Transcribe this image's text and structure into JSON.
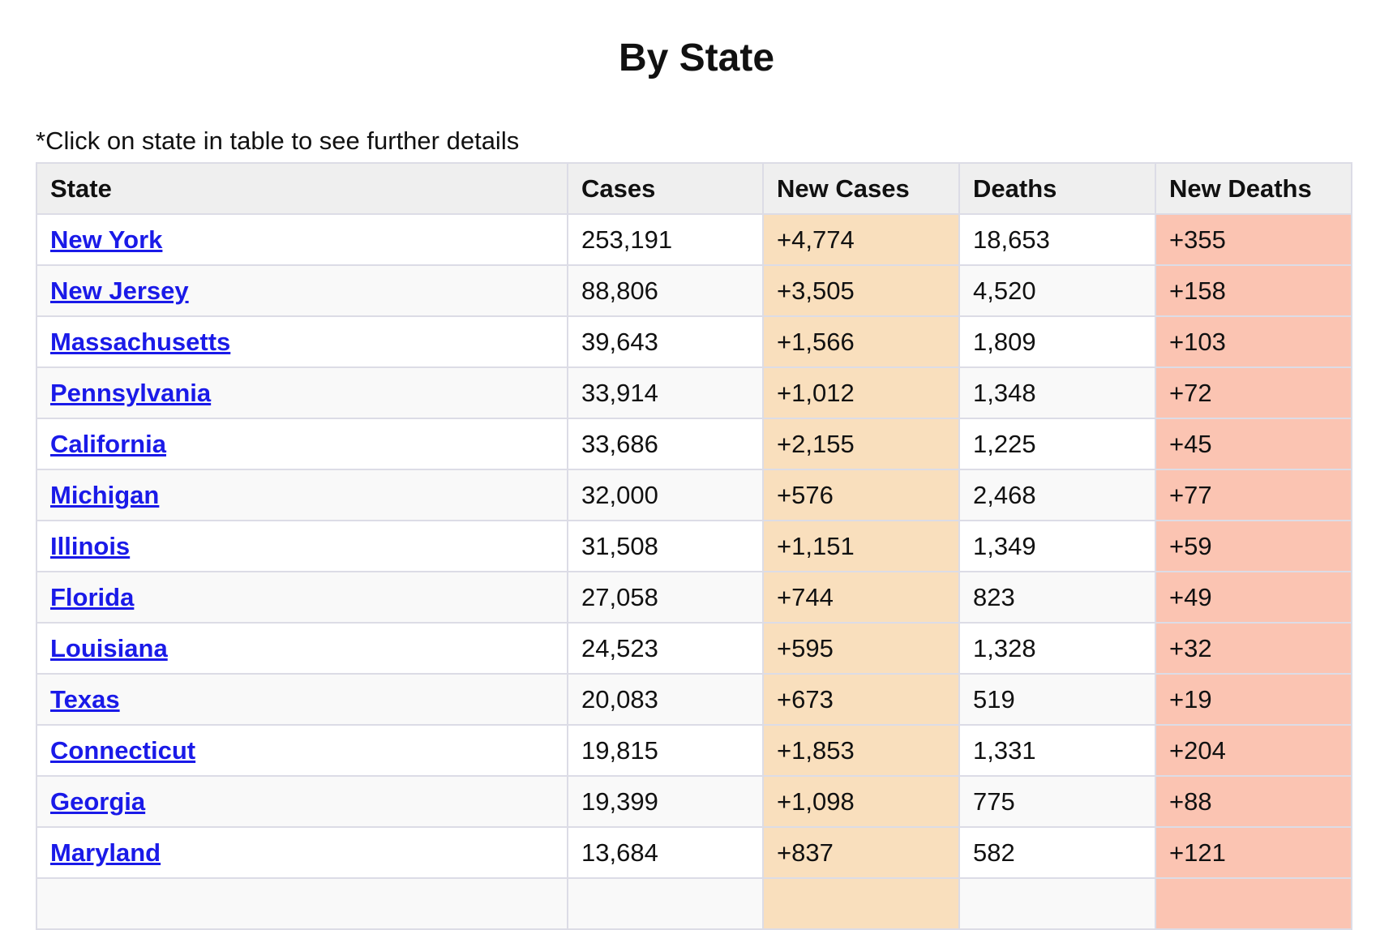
{
  "page": {
    "title": "By State",
    "note": "*Click on state in table to see further details"
  },
  "colors": {
    "link": "#1a1ae8",
    "new_cases_bg": "#f9dfbd",
    "new_deaths_bg": "#fbc4b2",
    "header_bg": "#efefef"
  },
  "table": {
    "headers": [
      "State",
      "Cases",
      "New Cases",
      "Deaths",
      "New Deaths"
    ],
    "rows": [
      {
        "state": "New York",
        "cases": "253,191",
        "new_cases": "+4,774",
        "deaths": "18,653",
        "new_deaths": "+355"
      },
      {
        "state": "New Jersey",
        "cases": "88,806",
        "new_cases": "+3,505",
        "deaths": "4,520",
        "new_deaths": "+158"
      },
      {
        "state": "Massachusetts",
        "cases": "39,643",
        "new_cases": "+1,566",
        "deaths": "1,809",
        "new_deaths": "+103"
      },
      {
        "state": "Pennsylvania",
        "cases": "33,914",
        "new_cases": "+1,012",
        "deaths": "1,348",
        "new_deaths": "+72"
      },
      {
        "state": "California",
        "cases": "33,686",
        "new_cases": "+2,155",
        "deaths": "1,225",
        "new_deaths": "+45"
      },
      {
        "state": "Michigan",
        "cases": "32,000",
        "new_cases": "+576",
        "deaths": "2,468",
        "new_deaths": "+77"
      },
      {
        "state": "Illinois",
        "cases": "31,508",
        "new_cases": "+1,151",
        "deaths": "1,349",
        "new_deaths": "+59"
      },
      {
        "state": "Florida",
        "cases": "27,058",
        "new_cases": "+744",
        "deaths": "823",
        "new_deaths": "+49"
      },
      {
        "state": "Louisiana",
        "cases": "24,523",
        "new_cases": "+595",
        "deaths": "1,328",
        "new_deaths": "+32"
      },
      {
        "state": "Texas",
        "cases": "20,083",
        "new_cases": "+673",
        "deaths": "519",
        "new_deaths": "+19"
      },
      {
        "state": "Connecticut",
        "cases": "19,815",
        "new_cases": "+1,853",
        "deaths": "1,331",
        "new_deaths": "+204"
      },
      {
        "state": "Georgia",
        "cases": "19,399",
        "new_cases": "+1,098",
        "deaths": "775",
        "new_deaths": "+88"
      },
      {
        "state": "Maryland",
        "cases": "13,684",
        "new_cases": "+837",
        "deaths": "582",
        "new_deaths": "+121"
      },
      {
        "state": "",
        "cases": "",
        "new_cases": "",
        "deaths": "",
        "new_deaths": ""
      }
    ]
  }
}
